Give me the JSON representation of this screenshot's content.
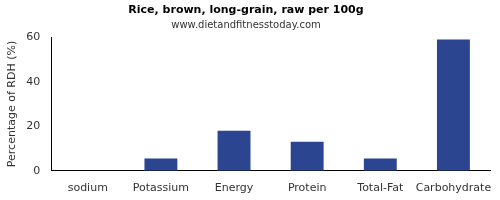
{
  "chart_data": {
    "type": "bar",
    "title": "Rice, brown, long-grain, raw per 100g",
    "subtitle": "www.dietandfitnesstoday.com",
    "y_label": "Percentage of RDH (%)",
    "categories": [
      "sodium",
      "Potassium",
      "Energy",
      "Protein",
      "Total-Fat",
      "Carbohydrate"
    ],
    "values": [
      0,
      5.5,
      18,
      13,
      5.5,
      59
    ],
    "color": "#2b4590",
    "ylim": [
      0,
      60
    ],
    "yticks": [
      0,
      20,
      40,
      60
    ],
    "grid": false
  }
}
